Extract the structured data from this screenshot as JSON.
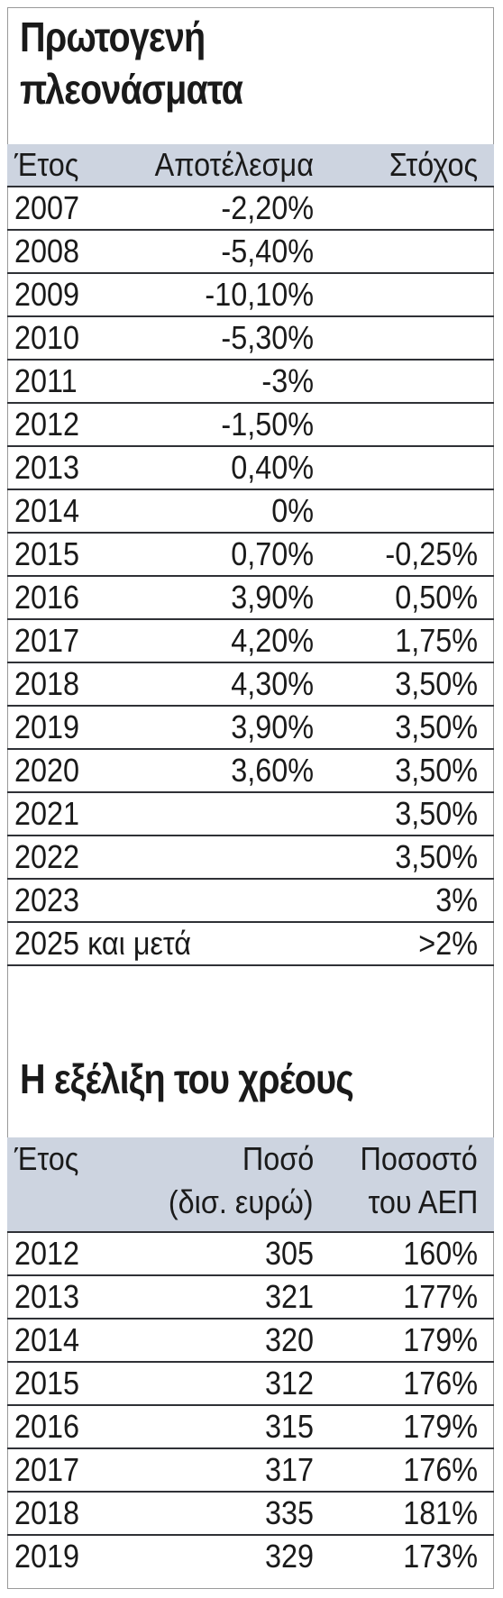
{
  "surpluses": {
    "title_line1": "Πρωτογενή",
    "title_line2": "πλεονάσματα",
    "headers": [
      "Έτος",
      "Αποτέλεσμα",
      "Στόχος"
    ],
    "rows": [
      {
        "year": "2007",
        "result": "-2,20%",
        "target": ""
      },
      {
        "year": "2008",
        "result": "-5,40%",
        "target": ""
      },
      {
        "year": "2009",
        "result": "-10,10%",
        "target": ""
      },
      {
        "year": "2010",
        "result": "-5,30%",
        "target": ""
      },
      {
        "year": "2011",
        "result": "-3%",
        "target": ""
      },
      {
        "year": "2012",
        "result": "-1,50%",
        "target": ""
      },
      {
        "year": "2013",
        "result": "0,40%",
        "target": ""
      },
      {
        "year": "2014",
        "result": "0%",
        "target": ""
      },
      {
        "year": "2015",
        "result": "0,70%",
        "target": "-0,25%"
      },
      {
        "year": "2016",
        "result": "3,90%",
        "target": "0,50%"
      },
      {
        "year": "2017",
        "result": "4,20%",
        "target": "1,75%"
      },
      {
        "year": "2018",
        "result": "4,30%",
        "target": "3,50%"
      },
      {
        "year": "2019",
        "result": "3,90%",
        "target": "3,50%"
      },
      {
        "year": "2020",
        "result": "3,60%",
        "target": "3,50%"
      },
      {
        "year": "2021",
        "result": "",
        "target": "3,50%"
      },
      {
        "year": "2022",
        "result": "",
        "target": "3,50%"
      },
      {
        "year": "2023",
        "result": "",
        "target": "3%"
      },
      {
        "year": "2025 και μετά",
        "result": "",
        "target": ">2%"
      }
    ]
  },
  "debt": {
    "title": "Η εξέλιξη του χρέους",
    "headers": {
      "year": "Έτος",
      "amount_line1": "Ποσό",
      "amount_line2": "(δισ. ευρώ)",
      "pct_line1": "Ποσοστό",
      "pct_line2": "του ΑΕΠ"
    },
    "rows": [
      {
        "year": "2012",
        "amount": "305",
        "pct": "160%"
      },
      {
        "year": "2013",
        "amount": "321",
        "pct": "177%"
      },
      {
        "year": "2014",
        "amount": "320",
        "pct": "179%"
      },
      {
        "year": "2015",
        "amount": "312",
        "pct": "176%"
      },
      {
        "year": "2016",
        "amount": "315",
        "pct": "179%"
      },
      {
        "year": "2017",
        "amount": "317",
        "pct": "176%"
      },
      {
        "year": "2018",
        "amount": "335",
        "pct": "181%"
      },
      {
        "year": "2019",
        "amount": "329",
        "pct": "173%"
      }
    ]
  },
  "colors": {
    "header_bg": "#cdd4e0",
    "rule": "#2f3136",
    "text": "#1a1a1a"
  }
}
